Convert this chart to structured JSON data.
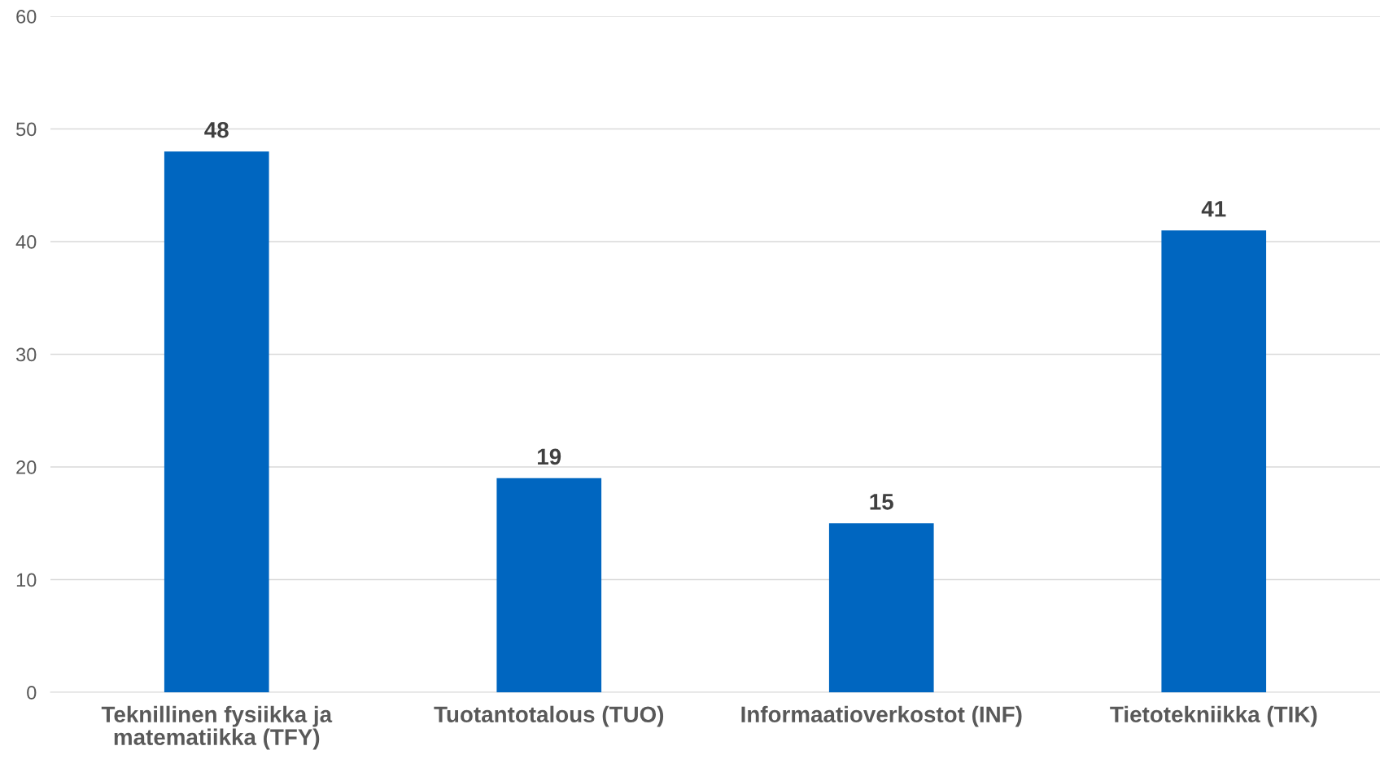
{
  "chart_data": {
    "type": "bar",
    "categories": [
      "Teknillinen fysiikka ja\nmatematiikka (TFY)",
      "Tuotantotalous (TUO)",
      "Informaatioverkostot (INF)",
      "Tietotekniikka (TIK)"
    ],
    "values": [
      48,
      19,
      15,
      41
    ],
    "color": "#0066c0",
    "ylim": [
      0,
      60
    ],
    "yticks": [
      0,
      10,
      20,
      30,
      40,
      50,
      60
    ],
    "grid": "y",
    "data_labels": true,
    "legend": false
  }
}
